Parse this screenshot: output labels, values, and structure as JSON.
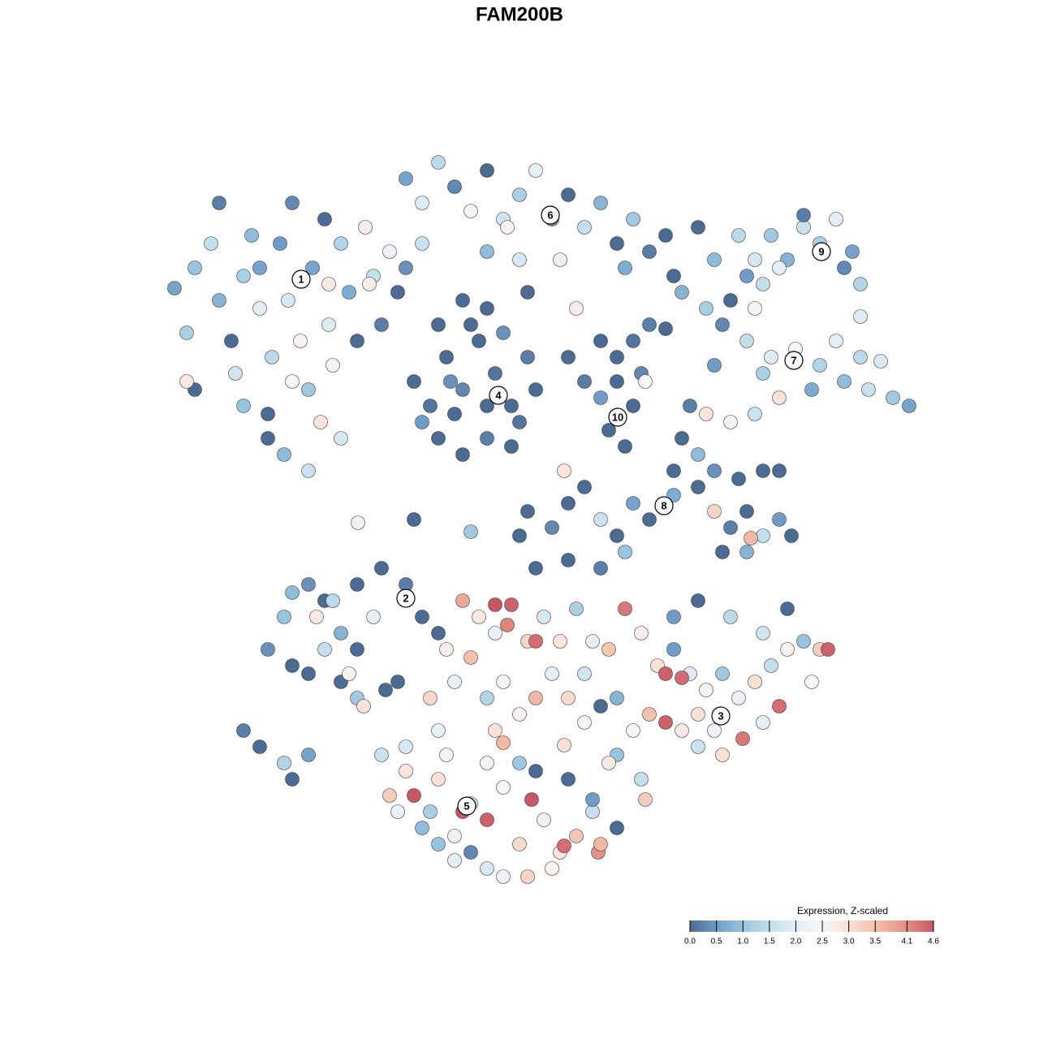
{
  "chart_data": {
    "type": "scatter",
    "title": "FAM200B",
    "xlim": [
      0,
      128
    ],
    "ylim": [
      128,
      0
    ],
    "x": [
      21.5,
      23,
      24,
      26,
      27,
      28.5,
      29,
      30,
      31,
      32,
      33,
      33.5,
      34.5,
      35.5,
      36,
      37,
      38,
      38.5,
      39.5,
      40,
      40.5,
      41,
      42,
      43,
      44,
      45,
      46,
      47,
      48,
      49,
      35,
      33,
      38,
      24,
      23,
      30,
      36,
      42,
      27,
      32,
      40.5,
      45.5,
      50,
      52,
      54,
      56,
      58,
      60,
      62,
      64,
      66,
      68,
      70,
      72,
      74,
      76,
      78,
      80,
      82,
      60,
      64,
      69,
      71,
      65,
      57,
      62.5,
      52,
      50,
      83,
      77,
      51,
      53,
      55,
      57,
      59,
      61,
      63,
      65,
      54,
      57,
      60,
      63,
      58,
      62,
      66,
      52,
      56,
      60,
      64,
      55.5,
      60,
      54,
      70,
      72,
      74,
      76,
      78,
      75,
      77,
      74,
      78,
      76,
      79,
      79.5,
      80,
      82,
      88,
      91,
      93,
      95,
      97,
      99,
      101,
      103,
      105,
      106,
      106,
      104,
      96,
      92,
      94,
      86,
      99,
      84,
      87,
      89,
      92,
      95,
      98,
      101,
      104,
      107,
      110,
      112,
      108.5,
      103,
      96,
      94,
      88,
      106,
      100,
      90,
      93,
      85,
      87,
      90,
      93,
      84,
      86,
      83,
      88,
      91,
      94,
      96,
      65,
      68,
      70,
      72,
      74,
      76,
      78,
      80,
      83,
      86,
      88,
      90,
      92,
      94,
      96,
      97.5,
      92,
      89,
      92.5,
      70,
      74,
      77,
      64,
      58,
      66,
      30,
      32,
      35,
      38,
      36,
      33,
      35,
      36,
      38,
      40,
      42,
      44,
      46,
      39,
      42,
      44,
      38,
      40,
      44,
      47,
      50,
      52,
      54,
      43,
      44.8,
      36,
      41,
      44.1,
      51,
      49,
      47.5,
      57,
      59,
      61,
      63,
      65,
      67,
      69,
      71,
      73,
      75,
      77,
      79,
      81,
      83,
      85,
      87,
      89,
      91,
      93,
      95,
      97,
      99,
      101,
      102,
      100,
      96,
      94,
      91.5,
      89,
      86,
      84,
      82,
      80,
      78,
      76,
      79,
      82,
      84,
      86,
      88,
      72,
      70,
      68,
      66,
      64,
      62,
      60,
      58,
      56,
      55,
      74,
      76,
      83,
      86,
      90,
      94,
      97,
      75,
      79.5,
      72,
      61,
      53,
      66,
      62.5,
      61,
      48,
      50,
      51,
      53,
      54,
      56,
      58,
      60,
      62,
      64,
      65.5,
      67,
      69,
      71,
      73,
      73.7,
      69.5,
      60,
      58,
      56,
      65,
      68,
      52,
      50,
      55,
      60,
      64,
      66,
      70,
      73,
      76,
      74,
      62,
      54,
      47,
      49,
      57,
      62,
      69.5,
      54,
      69.5
    ],
    "y": [
      35.5,
      41,
      33,
      30,
      37,
      42,
      46,
      34,
      29,
      38,
      51,
      44,
      30,
      37,
      25,
      42,
      48,
      33,
      52,
      27,
      40,
      45,
      30,
      36,
      42,
      28,
      34,
      40,
      31,
      36,
      56,
      54,
      58,
      48,
      47,
      50,
      47,
      54,
      25,
      33,
      35,
      35,
      33,
      30,
      20,
      23,
      26,
      21,
      27,
      24,
      21,
      27,
      24,
      28,
      25,
      30,
      27,
      31,
      29,
      31,
      32,
      32,
      38,
      36,
      37,
      28,
      25,
      22,
      34,
      33,
      47,
      50,
      44,
      48,
      42,
      46,
      50,
      44,
      54,
      56,
      54,
      55,
      40,
      41,
      48,
      52,
      51,
      50,
      52,
      47,
      38,
      40,
      44,
      47,
      42,
      44,
      42,
      53,
      55,
      49,
      50,
      47,
      46,
      47,
      40,
      40.5,
      32,
      29,
      32,
      29,
      32,
      28,
      30,
      27,
      31,
      35,
      39,
      33,
      33,
      34,
      35,
      28,
      26.5,
      36,
      38,
      40,
      42,
      44,
      43,
      45,
      47,
      48,
      49,
      50,
      44.5,
      42,
      49,
      46,
      45,
      44,
      48,
      37,
      38,
      50,
      51,
      52,
      51,
      54,
      56,
      58,
      58,
      59,
      58,
      58,
      63,
      65,
      62,
      60,
      64,
      66,
      62,
      64,
      61,
      60,
      63,
      65,
      63,
      66,
      64,
      66,
      68,
      68,
      66.3,
      69,
      70,
      68,
      66,
      65.5,
      70,
      90,
      92,
      94,
      93,
      96,
      80,
      76,
      82,
      83,
      80,
      78,
      80,
      76,
      76,
      84,
      86,
      72,
      74,
      72,
      70,
      72,
      76,
      78,
      83,
      87,
      73,
      74,
      64.4,
      64,
      84,
      85,
      74,
      76,
      78,
      74.5,
      79,
      76,
      79,
      75,
      79,
      80,
      75,
      78,
      82,
      80,
      83,
      85,
      83,
      86,
      84,
      82,
      80,
      79,
      80,
      80,
      84,
      87,
      89,
      91,
      93,
      92,
      90,
      89,
      88,
      90,
      93,
      96,
      83,
      83.5,
      88,
      90,
      83,
      86,
      83,
      86,
      88,
      84,
      86,
      81,
      84,
      80,
      87,
      86,
      76,
      74,
      76,
      78,
      75,
      94,
      98.5,
      89,
      90,
      86,
      79,
      77,
      74.5,
      98,
      95,
      98,
      100,
      96,
      103,
      99,
      101,
      97,
      104,
      98.5,
      101,
      105,
      103,
      100,
      105,
      104.2,
      107,
      105,
      106,
      108,
      107,
      102,
      92,
      93,
      94,
      94,
      95,
      96,
      98.5,
      102,
      104,
      108,
      104,
      93,
      100,
      100,
      91.5,
      91.8,
      90,
      58
    ],
    "values": [
      0.6,
      1.2,
      1.0,
      1.5,
      0.8,
      0,
      1.7,
      1.2,
      0.9,
      2.0,
      0,
      1.4,
      0.5,
      1.8,
      0.3,
      2.6,
      1.1,
      0.6,
      2.9,
      0,
      1.9,
      2.4,
      1.3,
      0.7,
      0,
      2.7,
      1.5,
      0.2,
      2.2,
      0,
      0.9,
      0,
      1.6,
      0,
      2.8,
      1.0,
      2.5,
      1.8,
      0.2,
      0.6,
      2.8,
      2.7,
      0.4,
      1.6,
      1.4,
      0.3,
      2.3,
      0,
      1.7,
      1.2,
      2.0,
      0.5,
      0,
      1.5,
      0.8,
      0,
      1.1,
      0.2,
      0,
      0.9,
      1.8,
      2.2,
      2.7,
      0,
      0,
      2.6,
      1.9,
      0.6,
      0,
      0.7,
      0,
      0.1,
      0,
      0.3,
      0,
      0.1,
      0,
      0.2,
      0,
      0,
      0.2,
      0,
      0,
      0.4,
      0,
      0.5,
      0,
      0,
      0.1,
      0.4,
      0,
      0,
      0,
      0.2,
      0,
      0,
      0.1,
      0,
      0,
      0.5,
      0,
      0,
      0.3,
      2.5,
      0.2,
      0,
      0.9,
      1.4,
      1.8,
      1.1,
      0.8,
      1.6,
      1.2,
      2.0,
      0.6,
      1.3,
      1.9,
      0.3,
      2.0,
      0.5,
      1.5,
      0,
      0.2,
      0.8,
      1.2,
      0.3,
      1.5,
      1.9,
      2.6,
      1.3,
      0.9,
      1.6,
      1.1,
      0.6,
      1.8,
      2.0,
      3.0,
      1.2,
      0.5,
      1.4,
      0.7,
      0,
      2.4,
      0.2,
      2.9,
      2.6,
      1.6,
      0,
      0.9,
      0,
      0.4,
      0,
      0,
      0,
      0,
      0.3,
      0,
      0,
      1.6,
      0,
      0.6,
      0,
      0.7,
      0,
      3.2,
      0.2,
      0,
      1.5,
      0.5,
      0,
      0.8,
      0,
      3.6,
      0,
      0.2,
      1.0,
      0,
      1.1,
      0,
      0.2,
      0,
      1.3,
      0.6,
      0,
      0.4,
      1.0,
      0,
      0,
      1.5,
      0.8,
      0,
      2.0,
      2.8,
      0,
      1.1,
      0.4,
      0,
      0,
      0,
      0.2,
      0,
      0,
      2.6,
      3.0,
      0.9,
      1.4,
      2.3,
      0,
      0,
      0,
      3.8,
      2.8,
      2.2,
      4.5,
      3.2,
      1.8,
      2.9,
      1.2,
      2.0,
      3.4,
      4.3,
      2.7,
      3.0,
      0.5,
      1.9,
      2.6,
      1.1,
      2.2,
      3.0,
      1.5,
      2.6,
      1.0,
      3.3,
      4.5,
      2.5,
      4.4,
      2.0,
      4.3,
      3.0,
      1.6,
      2.8,
      4.5,
      3.5,
      2.4,
      1.0,
      1.5,
      4.5,
      4.4,
      3.0,
      2.3,
      1.7,
      3.1,
      2.0,
      3.6,
      2.6,
      2.4,
      1.3,
      3.5,
      2.1,
      2.7,
      0,
      0.8,
      0.5,
      0,
      1.4,
      1.7,
      0,
      2.8,
      3.3,
      2.4,
      3.0,
      3.1,
      4.4,
      4.2,
      4.6,
      3.3,
      2.9,
      4.6,
      1.2,
      3.0,
      2.3,
      1.6,
      4.5,
      2.5,
      3.1,
      4.6,
      2.2,
      2.9,
      3.4,
      1.5,
      4.1,
      4.4,
      1.8,
      0.3,
      2.0,
      3.2,
      2.6,
      0.9,
      1.8,
      2.4,
      2.6,
      1.1,
      0,
      0,
      0.5,
      0,
      3.6,
      2.2,
      1.0,
      1.6,
      2.2,
      4.6,
      3.6,
      3.0,
      2.1,
      2.9
    ],
    "cluster_labels": [
      {
        "text": "1",
        "x": 37.1,
        "y": 34.4
      },
      {
        "text": "2",
        "x": 50,
        "y": 73.7
      },
      {
        "text": "3",
        "x": 88.8,
        "y": 88.2
      },
      {
        "text": "4",
        "x": 61.4,
        "y": 48.7
      },
      {
        "text": "5",
        "x": 57.5,
        "y": 99.3
      },
      {
        "text": "6",
        "x": 67.8,
        "y": 26.5
      },
      {
        "text": "7",
        "x": 97.8,
        "y": 44.4
      },
      {
        "text": "8",
        "x": 81.8,
        "y": 62.3
      },
      {
        "text": "9",
        "x": 101.2,
        "y": 31
      },
      {
        "text": "10",
        "x": 76.1,
        "y": 51.4
      }
    ],
    "colorbar": {
      "title": "Expression, Z-scaled",
      "lim": [
        0,
        4.6
      ],
      "ticks": [
        {
          "value": 0,
          "label": "0.0"
        },
        0.5,
        {
          "value": 1,
          "label": "1.0"
        },
        1.5,
        {
          "value": 2,
          "label": "2.0"
        },
        2.5,
        {
          "value": 3,
          "label": "3.0"
        },
        3.5,
        4.1,
        4.6
      ],
      "colors": [
        "#4a6b93",
        "#6f9cc8",
        "#97c4de",
        "#c3dfec",
        "#e3eef5",
        "#f7f6f5",
        "#f9e1d6",
        "#f3c0aa",
        "#e48f84",
        "#c85663"
      ]
    }
  }
}
